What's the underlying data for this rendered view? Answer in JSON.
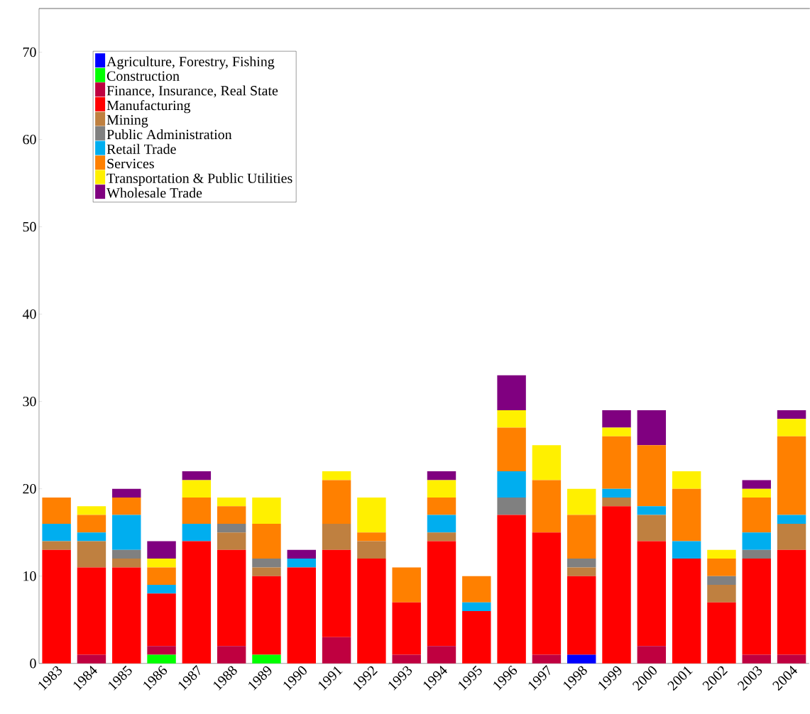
{
  "chart_data": {
    "type": "bar",
    "stacked": true,
    "categories": [
      "1983",
      "1984",
      "1985",
      "1986",
      "1987",
      "1988",
      "1989",
      "1990",
      "1991",
      "1992",
      "1993",
      "1994",
      "1995",
      "1996",
      "1997",
      "1998",
      "1999",
      "2000",
      "2001",
      "2002",
      "2003",
      "2004"
    ],
    "series": [
      {
        "name": "Agriculture, Forestry, Fishing",
        "color": "#0000ff",
        "values": [
          0,
          0,
          0,
          0,
          0,
          0,
          0,
          0,
          0,
          0,
          0,
          0,
          0,
          0,
          0,
          1,
          0,
          0,
          0,
          0,
          0,
          0
        ]
      },
      {
        "name": "Construction",
        "color": "#00ff00",
        "values": [
          0,
          0,
          0,
          1,
          0,
          0,
          1,
          0,
          0,
          0,
          0,
          0,
          0,
          0,
          0,
          0,
          0,
          0,
          0,
          0,
          0,
          0
        ]
      },
      {
        "name": "Finance, Insurance, Real State",
        "color": "#bf0040",
        "values": [
          0,
          1,
          0,
          1,
          0,
          2,
          0,
          0,
          3,
          0,
          1,
          2,
          0,
          0,
          1,
          0,
          0,
          2,
          0,
          0,
          1,
          1
        ]
      },
      {
        "name": "Manufacturing",
        "color": "#ff0000",
        "values": [
          13,
          10,
          11,
          6,
          14,
          11,
          9,
          11,
          10,
          12,
          6,
          12,
          6,
          17,
          14,
          9,
          18,
          12,
          12,
          7,
          11,
          12
        ]
      },
      {
        "name": "Mining",
        "color": "#bf8040",
        "values": [
          1,
          3,
          1,
          0,
          0,
          2,
          1,
          0,
          3,
          2,
          0,
          1,
          0,
          0,
          0,
          1,
          1,
          3,
          0,
          2,
          0,
          3
        ]
      },
      {
        "name": "Public Administration",
        "color": "#808080",
        "values": [
          0,
          0,
          1,
          0,
          0,
          1,
          1,
          0,
          0,
          0,
          0,
          0,
          0,
          2,
          0,
          1,
          0,
          0,
          0,
          1,
          1,
          0
        ]
      },
      {
        "name": "Retail Trade",
        "color": "#00aeef",
        "values": [
          2,
          1,
          4,
          1,
          2,
          0,
          0,
          1,
          0,
          0,
          0,
          2,
          1,
          3,
          0,
          0,
          1,
          1,
          2,
          0,
          2,
          1
        ]
      },
      {
        "name": "Services",
        "color": "#ff8000",
        "values": [
          3,
          2,
          2,
          2,
          3,
          2,
          4,
          0,
          5,
          1,
          4,
          2,
          3,
          5,
          6,
          5,
          6,
          7,
          6,
          2,
          4,
          9
        ]
      },
      {
        "name": "Transportation & Public Utilities",
        "color": "#fff000",
        "values": [
          0,
          1,
          0,
          1,
          2,
          1,
          3,
          0,
          1,
          4,
          0,
          2,
          0,
          2,
          4,
          3,
          1,
          0,
          2,
          1,
          1,
          2
        ]
      },
      {
        "name": "Wholesale Trade",
        "color": "#800080",
        "values": [
          0,
          0,
          1,
          2,
          1,
          0,
          0,
          1,
          0,
          0,
          0,
          1,
          0,
          4,
          0,
          0,
          2,
          4,
          0,
          0,
          1,
          1
        ]
      }
    ],
    "ylim": [
      0,
      75
    ],
    "yticks": [
      0,
      10,
      20,
      30,
      40,
      50,
      60,
      70
    ],
    "legend": "top left"
  }
}
